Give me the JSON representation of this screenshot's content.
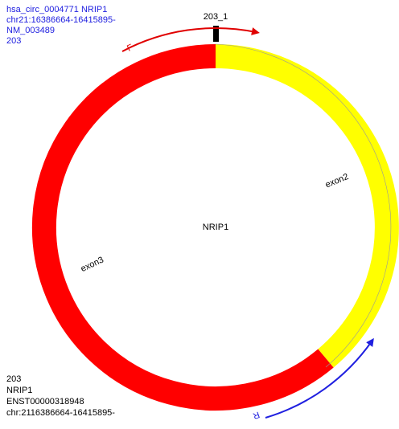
{
  "info": {
    "lines": [
      "hsa_circ_0004771 NRIP1",
      "chr21:16386664-16415895-",
      "NM_003489",
      "203"
    ]
  },
  "marker": {
    "label": "203_1"
  },
  "primers": {
    "forward": "F",
    "reverse": "R"
  },
  "center_label": "NRIP1",
  "exons": [
    {
      "label": "exon2"
    },
    {
      "label": "exon3"
    }
  ],
  "footer": {
    "lines": [
      "203",
      "NRIP1",
      "ENST00000318948",
      "chr:2116386664-16415895-"
    ]
  }
}
